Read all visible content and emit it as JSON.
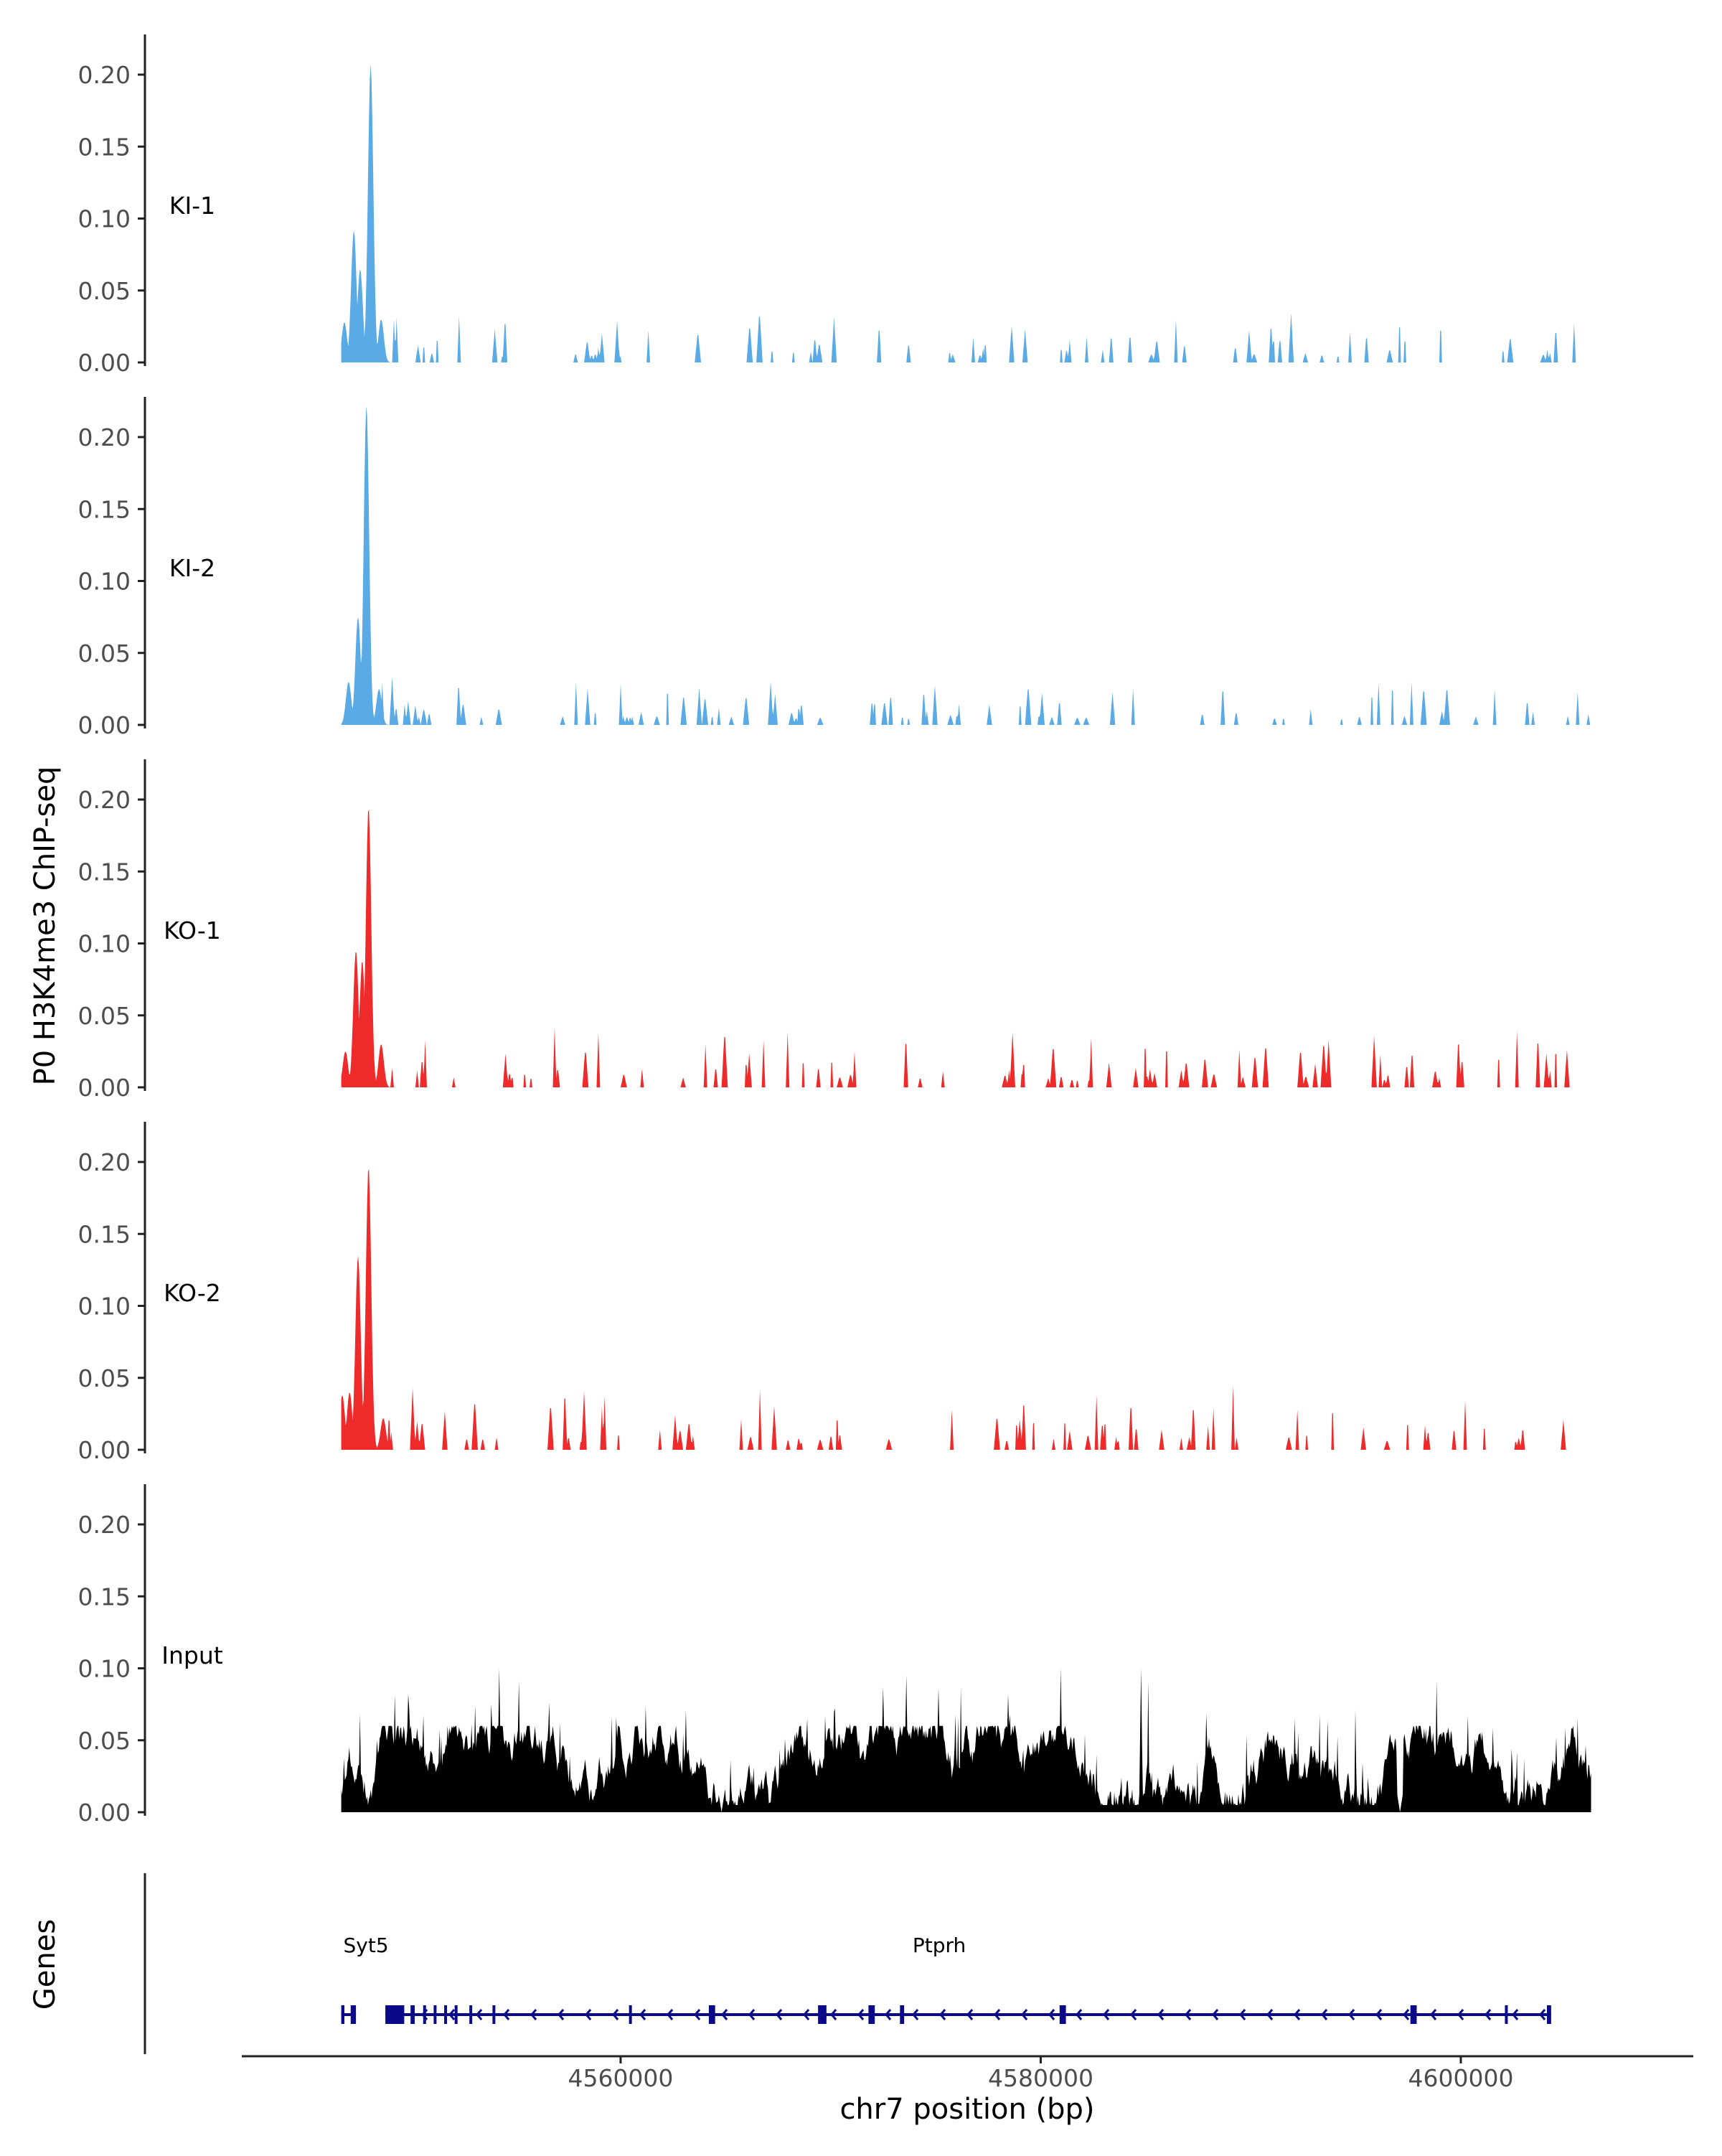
{
  "chart_data": {
    "type": "area",
    "title": "",
    "ylabel": "P0 H3K4me3 ChIP-seq",
    "xlabel": "chr7 position (bp)",
    "xlim": [
      4542000,
      4611000
    ],
    "ylim": [
      0,
      0.22
    ],
    "yticks": [
      "0.00",
      "0.05",
      "0.10",
      "0.15",
      "0.20"
    ],
    "ytick_values": [
      0,
      0.05,
      0.1,
      0.15,
      0.2
    ],
    "xticks": [
      "4560000",
      "4580000",
      "4600000"
    ],
    "xtick_values": [
      4560000,
      4580000,
      4600000
    ],
    "track_start": 4546700,
    "track_end": 4606200,
    "colors": {
      "KI": "#5aaae6",
      "KO": "#ee2a2a",
      "Input": "#000000",
      "genes": "#0a0a88",
      "axis": "#222222",
      "tick_text": "#4d4d4d"
    },
    "tracks": [
      {
        "name": "KI-1",
        "color": "#5aaae6",
        "peaks": [
          [
            4546850,
            0.028
          ],
          [
            4547300,
            0.092
          ],
          [
            4547600,
            0.065
          ],
          [
            4548100,
            0.207
          ],
          [
            4548600,
            0.03
          ]
        ],
        "bg_max": 0.038,
        "seed": 11,
        "sparse": true
      },
      {
        "name": "KI-2",
        "color": "#5aaae6",
        "peaks": [
          [
            4547050,
            0.03
          ],
          [
            4547500,
            0.075
          ],
          [
            4547900,
            0.222
          ],
          [
            4548500,
            0.025
          ]
        ],
        "bg_max": 0.037,
        "seed": 23,
        "sparse": true
      },
      {
        "name": "KO-1",
        "color": "#ee2a2a",
        "peaks": [
          [
            4546900,
            0.025
          ],
          [
            4547400,
            0.095
          ],
          [
            4547700,
            0.088
          ],
          [
            4548000,
            0.195
          ],
          [
            4548600,
            0.03
          ]
        ],
        "bg_max": 0.042,
        "seed": 37,
        "sparse": true
      },
      {
        "name": "KO-2",
        "color": "#ee2a2a",
        "peaks": [
          [
            4546750,
            0.038
          ],
          [
            4547100,
            0.04
          ],
          [
            4547500,
            0.135
          ],
          [
            4548000,
            0.197
          ],
          [
            4548700,
            0.022
          ]
        ],
        "bg_max": 0.046,
        "seed": 53,
        "sparse": true
      },
      {
        "name": "Input",
        "color": "#000000",
        "peaks": [],
        "bg_max": 0.1,
        "seed": 71,
        "sparse": false
      }
    ],
    "genes_panel": {
      "label": "Genes",
      "genes": [
        {
          "name": "Syt5",
          "start": 4546700,
          "end": 4547400,
          "strand": "-",
          "label_x": 4546800,
          "exons": [
            [
              4546700,
              4546850
            ],
            [
              4547150,
              4547400
            ]
          ]
        },
        {
          "name": "Ptprh",
          "start": 4548800,
          "end": 4604300,
          "strand": "-",
          "label_x": 4573900,
          "exons": [
            [
              4548800,
              4549700
            ],
            [
              4550000,
              4550200
            ],
            [
              4550600,
              4550700
            ],
            [
              4551100,
              4551200
            ],
            [
              4551600,
              4551700
            ],
            [
              4552100,
              4552200
            ],
            [
              4552800,
              4552900
            ],
            [
              4553900,
              4554000
            ],
            [
              4560400,
              4560500
            ],
            [
              4564200,
              4564500
            ],
            [
              4569400,
              4569800
            ],
            [
              4571800,
              4572100
            ],
            [
              4573300,
              4573500
            ],
            [
              4580900,
              4581200
            ],
            [
              4597600,
              4597900
            ],
            [
              4602100,
              4602200
            ],
            [
              4604100,
              4604300
            ]
          ]
        }
      ]
    }
  }
}
